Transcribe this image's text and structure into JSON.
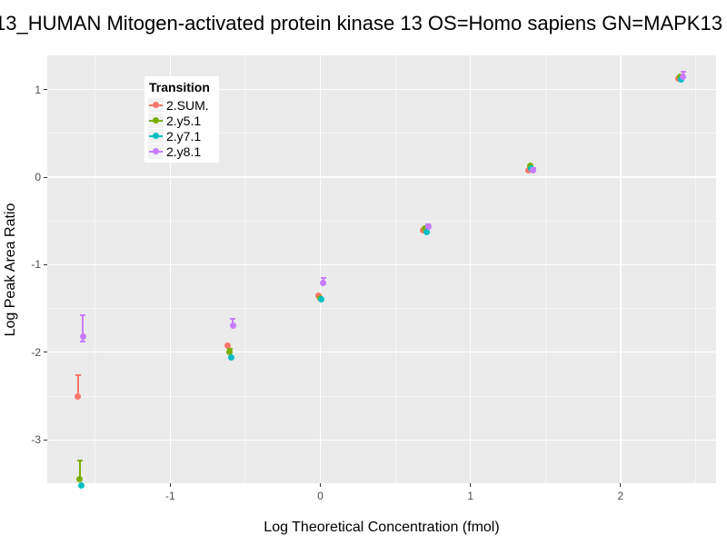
{
  "chart_data": {
    "type": "scatter",
    "title": "13_HUMAN Mitogen-activated protein kinase 13 OS=Homo sapiens GN=MAPK13",
    "xlabel": "Log Theoretical Concentration (fmol)",
    "ylabel": "Log Peak Area Ratio",
    "legend_title": "Transition",
    "legend_position": "top-left-inside-panel",
    "grid": "gray panel, white major and minor gridlines",
    "xlim": [
      -1.82,
      2.64
    ],
    "ylim": [
      -3.5,
      1.39
    ],
    "x_ticks": [
      -1,
      0,
      1,
      2
    ],
    "x_minor_ticks": [
      -1.5,
      -0.5,
      0.5,
      1.5,
      2.5
    ],
    "y_ticks": [
      1,
      0,
      -1,
      -2,
      -3
    ],
    "y_minor_ticks": [
      0.5,
      -0.5,
      -1.5,
      -2.5,
      -3.5
    ],
    "x": [
      -1.6,
      -0.6,
      0.0,
      0.7,
      1.4,
      2.4
    ],
    "series": [
      {
        "name": "2.SUM.",
        "color": "#F8766D",
        "values": [
          -2.51,
          -1.92,
          -1.35,
          -0.61,
          0.08,
          1.13
        ],
        "err_up": [
          0.25,
          0,
          0,
          0,
          0,
          0
        ],
        "err_down": [
          0,
          0,
          0,
          0,
          0,
          0
        ]
      },
      {
        "name": "2.y5.1",
        "color": "#7CAE00",
        "values": [
          -3.45,
          -2.0,
          -1.38,
          -0.59,
          0.13,
          1.15
        ],
        "err_up": [
          0.21,
          0.04,
          0,
          0,
          0,
          0
        ],
        "err_down": [
          0,
          0,
          0,
          0,
          0,
          0
        ]
      },
      {
        "name": "2.y7.1",
        "color": "#00BFC4",
        "values": [
          -3.52,
          -2.06,
          -1.4,
          -0.63,
          0.1,
          1.12
        ],
        "err_up": [
          0,
          0,
          0,
          0,
          0,
          0
        ],
        "err_down": [
          0,
          0,
          0,
          0,
          0,
          0
        ]
      },
      {
        "name": "2.y8.1",
        "color": "#C77CFF",
        "values": [
          -1.82,
          -1.7,
          -1.21,
          -0.57,
          0.08,
          1.15
        ],
        "err_up": [
          0.24,
          0.08,
          0.06,
          0.03,
          0.02,
          0.05
        ],
        "err_down": [
          0.06,
          0,
          0,
          0,
          0,
          0
        ]
      }
    ]
  },
  "colors": {
    "panel_bg": "#EBEBEB",
    "gridline": "#FFFFFF",
    "tick_label": "#4D4D4D",
    "text": "#000000",
    "legend_bg": "#FFFFFF",
    "legend_key_bg": "#F2F2F2"
  }
}
